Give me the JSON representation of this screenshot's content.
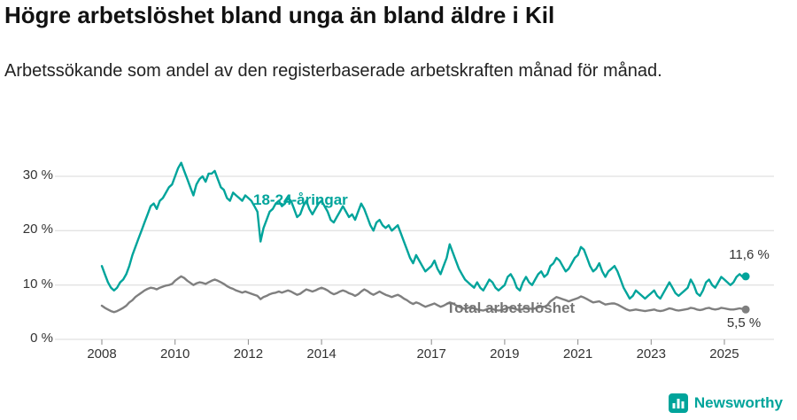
{
  "title": "Högre arbetslöshet bland unga än bland äldre i Kil",
  "subtitle": "Arbetssökande som andel av den registerbaserade arbetskraften månad för månad.",
  "brand": {
    "name": "Newsworthy",
    "color": "#00A49B"
  },
  "chart_data": {
    "type": "line",
    "title": "Högre arbetslöshet bland unga än bland äldre i Kil",
    "xlabel": "",
    "ylabel": "",
    "x_start_year": 2008,
    "x_step_months": 1,
    "x_ticks": [
      2008,
      2010,
      2012,
      2014,
      2017,
      2019,
      2021,
      2023,
      2025
    ],
    "y_ticks": [
      0,
      10,
      20,
      30
    ],
    "y_tick_labels": [
      "0 %",
      "10 %",
      "20 %",
      "30 %"
    ],
    "ylim": [
      0,
      33.5
    ],
    "grid": "horizontal",
    "legend_position": "inline-annotations",
    "series": [
      {
        "name": "18-24-åringar",
        "color": "#00A49B",
        "end_label": "11,6 %",
        "end_value": 11.6,
        "values": [
          13.5,
          12.0,
          10.5,
          9.5,
          9.0,
          9.5,
          10.5,
          11.0,
          12.0,
          13.5,
          15.5,
          17.0,
          18.5,
          20.0,
          21.5,
          23.0,
          24.5,
          25.0,
          24.0,
          25.5,
          26.0,
          27.0,
          28.0,
          28.5,
          30.0,
          31.5,
          32.5,
          31.0,
          29.5,
          28.0,
          26.5,
          28.5,
          29.5,
          30.0,
          29.0,
          30.5,
          30.5,
          31.0,
          29.5,
          28.0,
          27.5,
          26.0,
          25.5,
          27.0,
          26.5,
          26.0,
          25.5,
          26.5,
          26.0,
          25.5,
          24.5,
          23.5,
          18.0,
          20.5,
          22.0,
          23.5,
          24.0,
          25.0,
          25.5,
          24.5,
          25.0,
          26.0,
          25.5,
          24.0,
          22.5,
          23.0,
          24.5,
          25.5,
          24.0,
          23.0,
          24.0,
          25.0,
          25.5,
          24.5,
          23.5,
          22.0,
          21.5,
          22.5,
          23.5,
          24.5,
          23.5,
          22.5,
          23.0,
          22.0,
          23.5,
          25.0,
          24.0,
          22.5,
          21.0,
          20.0,
          21.5,
          22.0,
          21.0,
          20.5,
          21.0,
          20.0,
          20.5,
          21.0,
          19.5,
          18.0,
          16.5,
          15.0,
          14.0,
          15.5,
          14.5,
          13.5,
          12.5,
          13.0,
          13.5,
          14.5,
          13.0,
          12.0,
          13.5,
          15.0,
          17.5,
          16.0,
          14.5,
          13.0,
          12.0,
          11.0,
          10.5,
          10.0,
          9.5,
          10.5,
          9.5,
          9.0,
          10.0,
          11.0,
          10.5,
          9.5,
          9.0,
          9.5,
          10.0,
          11.5,
          12.0,
          11.0,
          9.5,
          9.0,
          10.5,
          11.5,
          10.5,
          10.0,
          11.0,
          12.0,
          12.5,
          11.5,
          12.0,
          13.5,
          14.0,
          15.0,
          14.5,
          13.5,
          12.5,
          13.0,
          14.0,
          15.0,
          15.5,
          17.0,
          16.5,
          15.0,
          13.5,
          12.5,
          13.0,
          14.0,
          12.5,
          11.5,
          12.5,
          13.0,
          13.5,
          12.5,
          11.0,
          9.5,
          8.5,
          7.5,
          8.0,
          9.0,
          8.5,
          8.0,
          7.5,
          8.0,
          8.5,
          9.0,
          8.0,
          7.5,
          8.5,
          9.5,
          10.5,
          9.5,
          8.5,
          8.0,
          8.5,
          9.0,
          9.5,
          11.0,
          10.0,
          8.5,
          8.0,
          9.0,
          10.5,
          11.0,
          10.0,
          9.5,
          10.5,
          11.5,
          11.0,
          10.5,
          10.0,
          10.5,
          11.5,
          12.0,
          11.5,
          11.6
        ]
      },
      {
        "name": "Total arbetslöshet",
        "color": "#7f7f7f",
        "end_label": "5,5 %",
        "end_value": 5.5,
        "values": [
          6.2,
          5.8,
          5.5,
          5.2,
          5.0,
          5.2,
          5.5,
          5.8,
          6.2,
          6.8,
          7.2,
          7.8,
          8.2,
          8.6,
          9.0,
          9.3,
          9.5,
          9.4,
          9.2,
          9.5,
          9.7,
          9.9,
          10.0,
          10.2,
          10.8,
          11.2,
          11.6,
          11.3,
          10.8,
          10.4,
          10.0,
          10.3,
          10.5,
          10.4,
          10.2,
          10.5,
          10.8,
          11.0,
          10.8,
          10.5,
          10.2,
          9.8,
          9.5,
          9.3,
          9.0,
          8.8,
          8.6,
          8.8,
          8.6,
          8.4,
          8.2,
          8.0,
          7.4,
          7.8,
          8.0,
          8.3,
          8.5,
          8.6,
          8.8,
          8.6,
          8.8,
          9.0,
          8.8,
          8.5,
          8.2,
          8.4,
          8.8,
          9.2,
          9.0,
          8.8,
          9.0,
          9.3,
          9.5,
          9.3,
          9.0,
          8.6,
          8.3,
          8.5,
          8.8,
          9.0,
          8.8,
          8.5,
          8.3,
          8.0,
          8.3,
          8.8,
          9.2,
          8.9,
          8.5,
          8.2,
          8.5,
          8.8,
          8.5,
          8.2,
          8.0,
          7.8,
          8.0,
          8.2,
          7.9,
          7.5,
          7.2,
          6.8,
          6.5,
          6.8,
          6.6,
          6.3,
          6.0,
          6.2,
          6.4,
          6.6,
          6.3,
          6.0,
          6.2,
          6.5,
          6.8,
          6.6,
          6.3,
          6.0,
          5.8,
          5.6,
          5.8,
          5.9,
          5.7,
          5.5,
          5.4,
          5.3,
          5.5,
          5.7,
          5.6,
          5.4,
          5.3,
          5.4,
          5.6,
          5.8,
          5.9,
          5.7,
          5.5,
          5.4,
          5.6,
          5.8,
          5.7,
          5.6,
          5.7,
          5.9,
          6.0,
          6.0,
          6.3,
          7.0,
          7.4,
          7.8,
          7.6,
          7.4,
          7.2,
          7.0,
          7.2,
          7.4,
          7.6,
          7.9,
          7.7,
          7.4,
          7.1,
          6.8,
          6.9,
          7.0,
          6.7,
          6.4,
          6.5,
          6.6,
          6.6,
          6.4,
          6.1,
          5.8,
          5.5,
          5.3,
          5.4,
          5.5,
          5.4,
          5.3,
          5.2,
          5.3,
          5.4,
          5.5,
          5.3,
          5.2,
          5.3,
          5.5,
          5.7,
          5.6,
          5.4,
          5.3,
          5.4,
          5.5,
          5.6,
          5.8,
          5.7,
          5.5,
          5.4,
          5.5,
          5.7,
          5.8,
          5.6,
          5.5,
          5.6,
          5.8,
          5.7,
          5.6,
          5.5,
          5.5,
          5.6,
          5.7,
          5.6,
          5.5
        ]
      }
    ]
  }
}
